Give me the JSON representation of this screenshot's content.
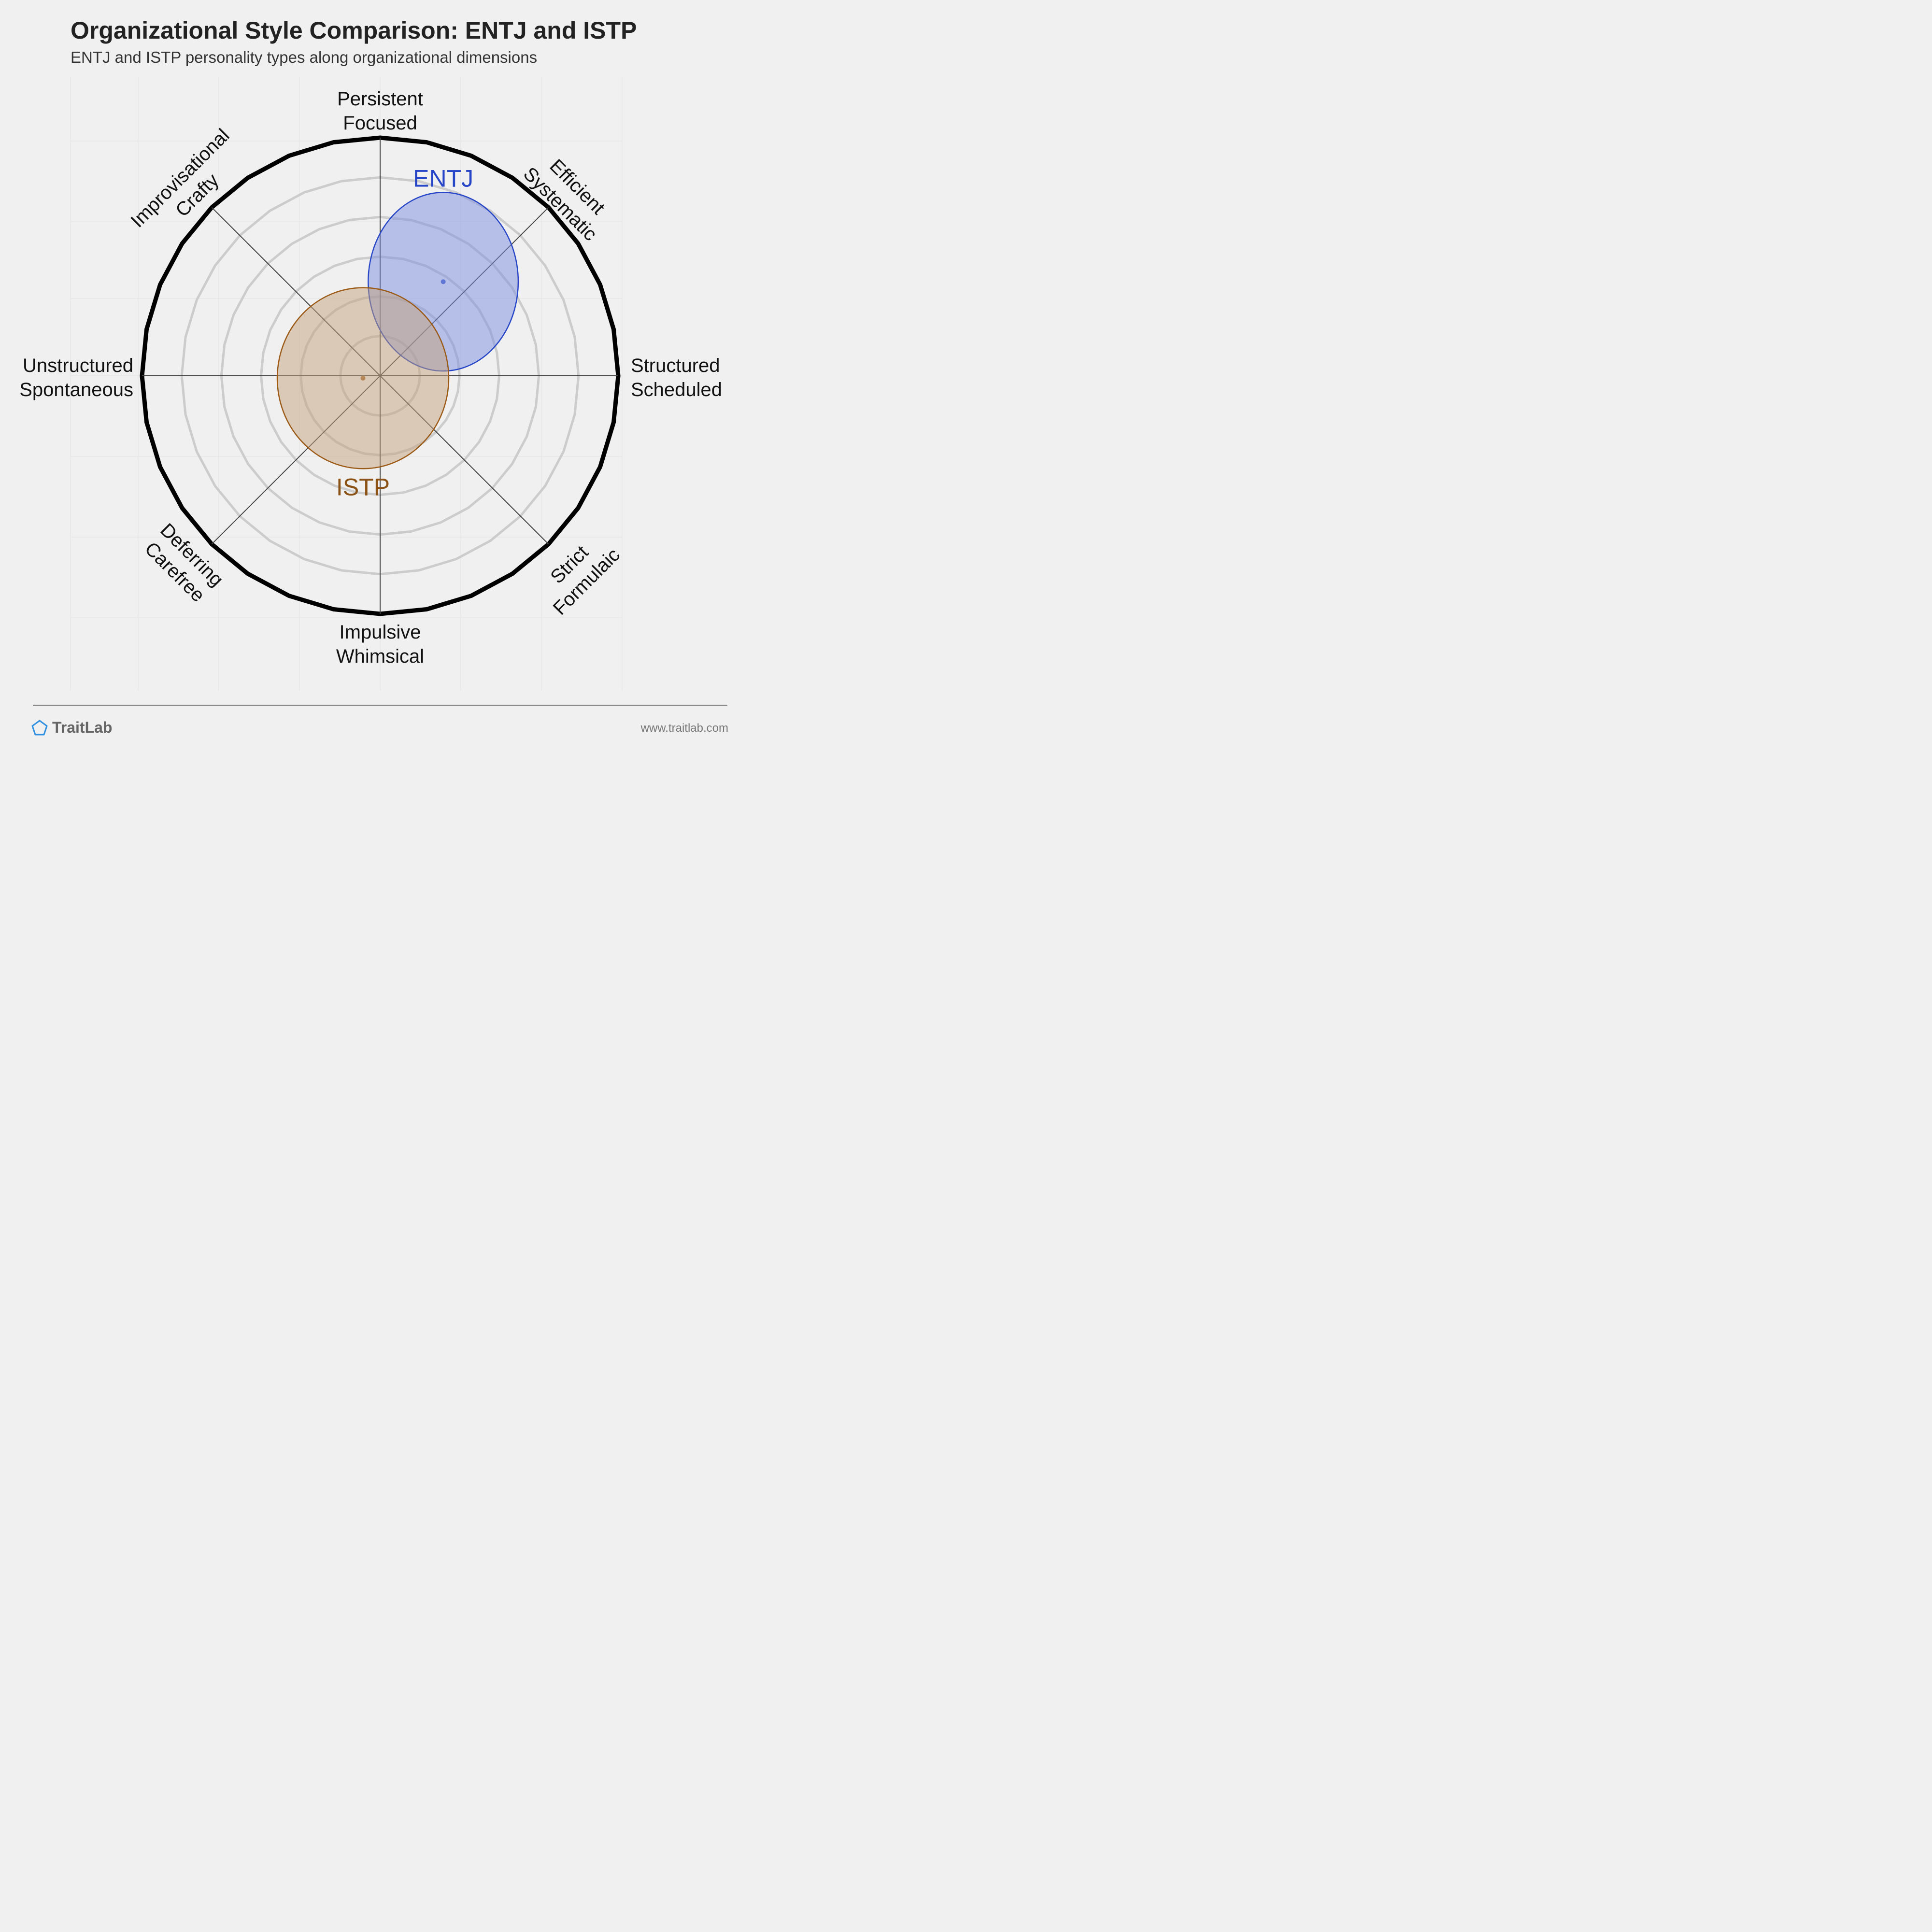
{
  "title": "Organizational Style Comparison: ENTJ and ISTP",
  "subtitle": "ENTJ and ISTP personality types along organizational dimensions",
  "footer": {
    "brand": "TraitLab",
    "brand_icon": "pentagon-logo-icon",
    "website": "www.traitlab.com"
  },
  "chart_data": {
    "type": "radar",
    "rings": 6,
    "axes": [
      {
        "angle": 0,
        "lines": [
          "Structured",
          "Scheduled"
        ]
      },
      {
        "angle": 45,
        "lines": [
          "Efficient",
          "Systematic"
        ]
      },
      {
        "angle": 90,
        "lines": [
          "Persistent",
          "Focused"
        ]
      },
      {
        "angle": 135,
        "lines": [
          "Improvisational",
          "Crafty"
        ]
      },
      {
        "angle": 180,
        "lines": [
          "Unstructured",
          "Spontaneous"
        ]
      },
      {
        "angle": 225,
        "lines": [
          "Deferring",
          "Carefree"
        ]
      },
      {
        "angle": 270,
        "lines": [
          "Impulsive",
          "Whimsical"
        ]
      },
      {
        "angle": 315,
        "lines": [
          "Strict",
          "Formulaic"
        ]
      }
    ],
    "series": [
      {
        "name": "ENTJ",
        "center": [
          0.265,
          0.395
        ],
        "radius": [
          0.315,
          0.375
        ],
        "fill": "#7b8ee0",
        "stroke": "#2746c7",
        "label_color": "#2746c7"
      },
      {
        "name": "ISTP",
        "center": [
          -0.072,
          -0.01
        ],
        "radius": [
          0.36,
          0.38
        ],
        "fill": "#c4a27c",
        "stroke": "#9c5a17",
        "label_color": "#8a5216"
      }
    ],
    "colors": {
      "ring": "#cccccc",
      "outer_ring": "#000000",
      "spoke": "#444444",
      "grid": "#e2e2e2"
    }
  }
}
